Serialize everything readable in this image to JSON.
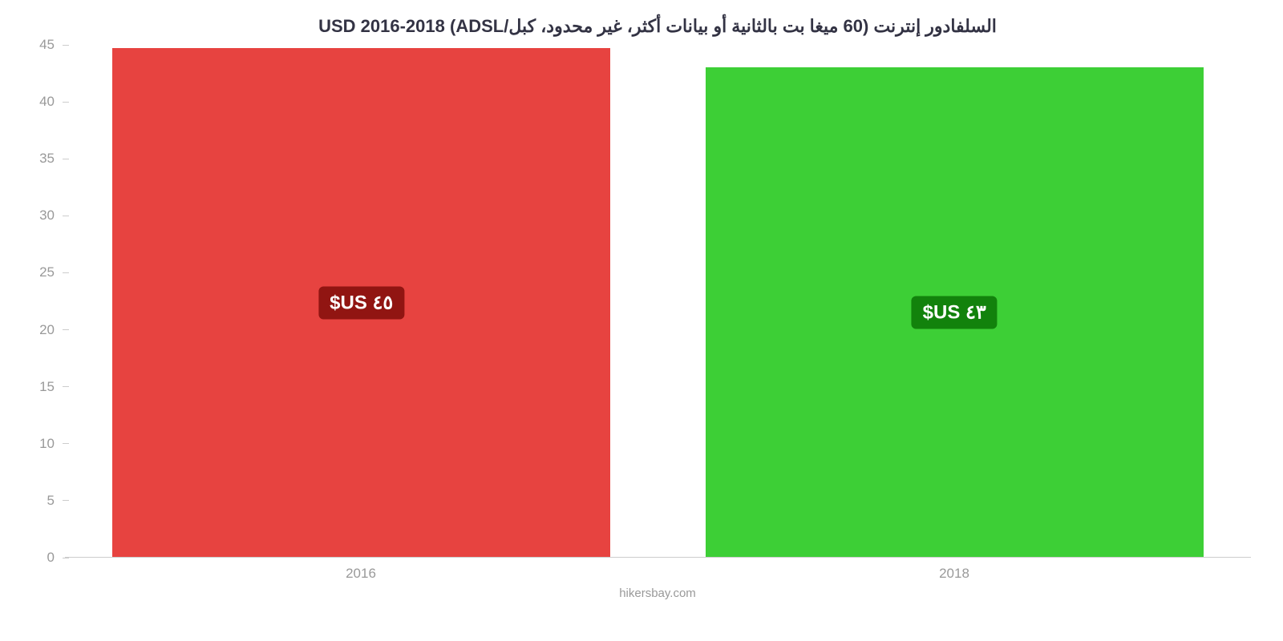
{
  "chart": {
    "type": "bar",
    "title": "السلفادور إنترنت (60 ميغا بت بالثانية أو بيانات أكثر، غير محدود، كبل/ADSL) USD 2016-2018",
    "title_color": "#333344",
    "title_fontsize": 22,
    "background_color": "#ffffff",
    "attribution": "hikersbay.com",
    "attribution_color": "#999999",
    "ylim_min": 0,
    "ylim_max": 45,
    "ytick_step": 5,
    "yticks": [
      0,
      5,
      10,
      15,
      20,
      25,
      30,
      35,
      40,
      45
    ],
    "tick_label_color": "#999999",
    "tick_label_fontsize": 17,
    "axis_line_color": "#cccccc",
    "bar_width_ratio": 0.84,
    "bars": [
      {
        "category": "2016",
        "value": 44.7,
        "fill_color": "#e74340",
        "badge_text": "٤٥ US$",
        "badge_bg": "#911512",
        "badge_fontsize": 24
      },
      {
        "category": "2018",
        "value": 43,
        "fill_color": "#3dcf36",
        "badge_text": "٤٣ US$",
        "badge_bg": "#12820c",
        "badge_fontsize": 24
      }
    ]
  }
}
